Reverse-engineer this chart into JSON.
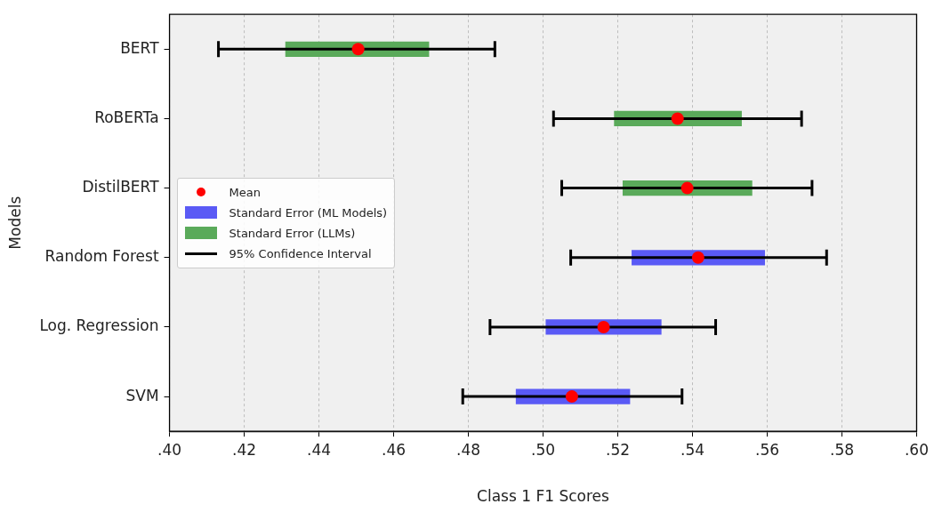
{
  "chart_data": {
    "type": "bar",
    "orientation": "horizontal",
    "xlabel": "Class 1 F1 Scores",
    "ylabel": "Models",
    "categories": [
      "BERT",
      "RoBERTa",
      "DistilBERT",
      "Random Forest",
      "Log. Regression",
      "SVM"
    ],
    "series": [
      {
        "name": "Mean",
        "type": "scatter",
        "marker": "circle",
        "color": "#ff0000",
        "values": [
          0.4505,
          0.536,
          0.5386,
          0.5415,
          0.5162,
          0.5077
        ],
        "errors": [
          [
            0.4131,
            0.4871
          ],
          [
            0.5028,
            0.5692
          ],
          [
            0.505,
            0.572
          ],
          [
            0.5074,
            0.5759
          ],
          [
            0.4858,
            0.5462
          ],
          [
            0.4785,
            0.5372
          ]
        ]
      },
      {
        "name": "Standard Error (ML Models)",
        "color": "#5a5af5",
        "base": [
          null,
          null,
          null,
          0.5237,
          0.5007,
          0.4927
        ],
        "values": [
          null,
          null,
          null,
          0.0357,
          0.031,
          0.0306
        ]
      },
      {
        "name": "Standard Error (LLMs)",
        "color": "#5aaa5a",
        "base": [
          0.431,
          0.519,
          0.5213,
          null,
          null,
          null
        ],
        "values": [
          0.0385,
          0.0342,
          0.0347,
          null,
          null,
          null
        ]
      },
      {
        "name": "95% Confidence Interval",
        "type": "line",
        "color": "#000000",
        "values": [
          null,
          null,
          null,
          null,
          null,
          null
        ]
      }
    ],
    "xlim": [
      0.4,
      0.6
    ],
    "xticks": [
      {
        "value": 0.4,
        "label": ".40"
      },
      {
        "value": 0.42,
        "label": ".42"
      },
      {
        "value": 0.44,
        "label": ".44"
      },
      {
        "value": 0.46,
        "label": ".46"
      },
      {
        "value": 0.48,
        "label": ".48"
      },
      {
        "value": 0.5,
        "label": ".50"
      },
      {
        "value": 0.52,
        "label": ".52"
      },
      {
        "value": 0.54,
        "label": ".54"
      },
      {
        "value": 0.56,
        "label": ".56"
      },
      {
        "value": 0.58,
        "label": ".58"
      },
      {
        "value": 0.6,
        "label": ".60"
      }
    ],
    "grid": "x",
    "legend": "left"
  }
}
